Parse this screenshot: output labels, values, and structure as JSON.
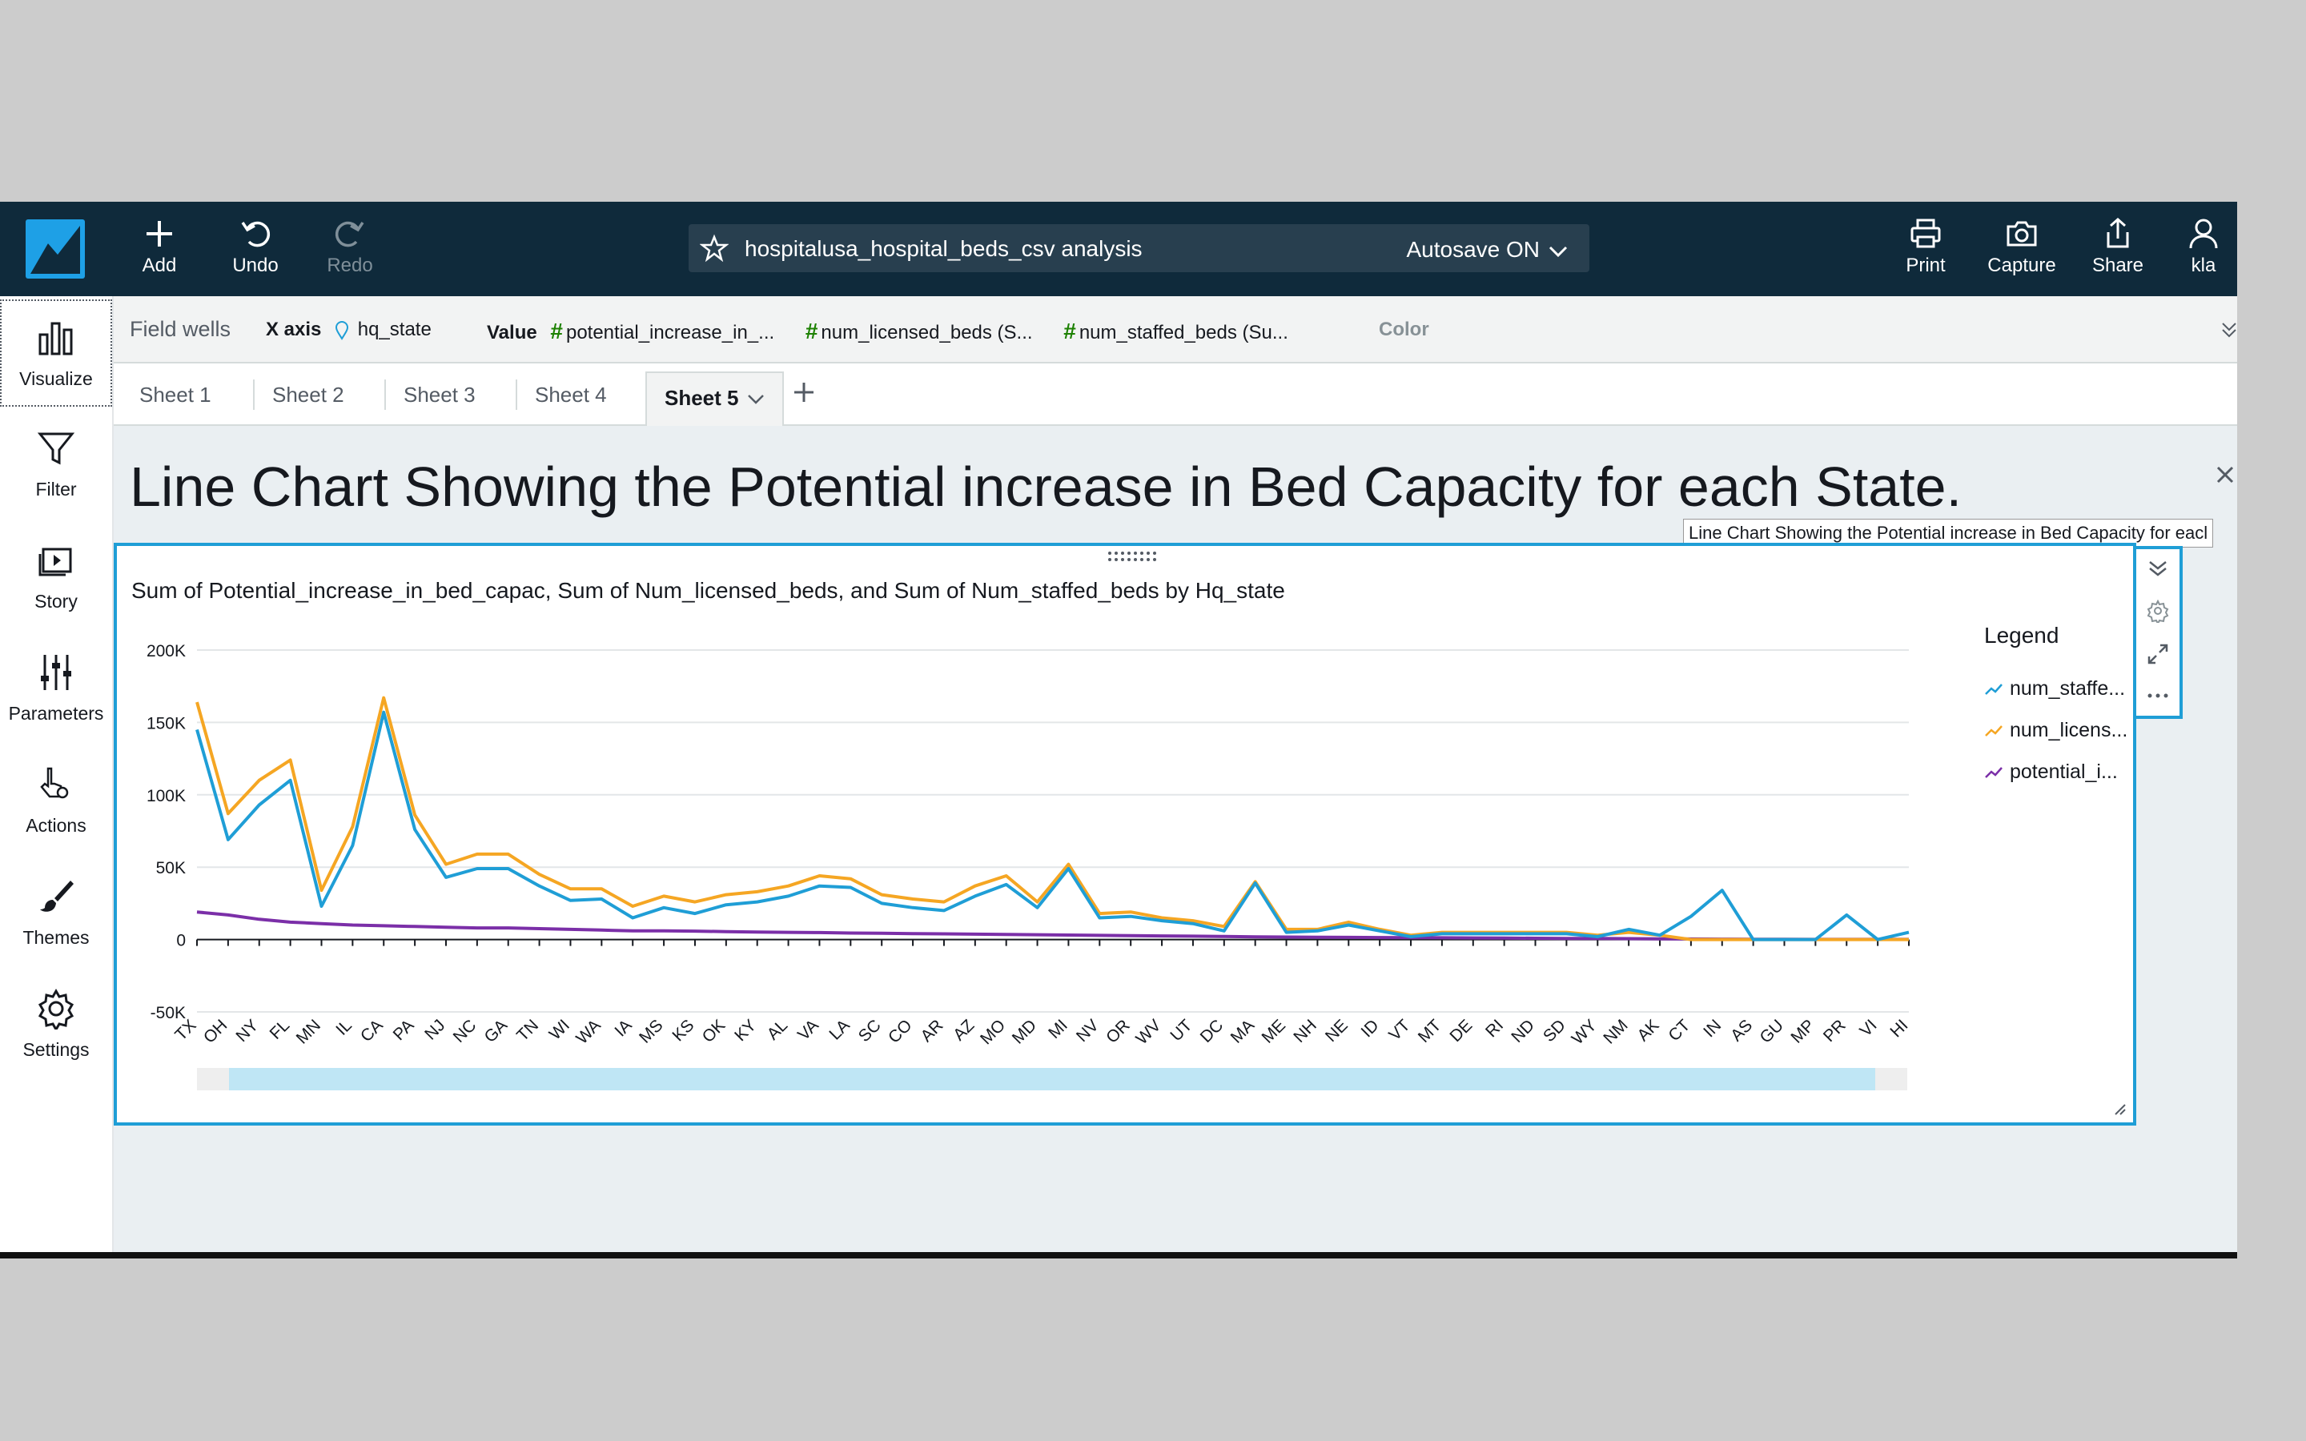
{
  "topbar": {
    "add_label": "Add",
    "undo_label": "Undo",
    "redo_label": "Redo",
    "analysis_name": "hospitalusa_hospital_beds_csv analysis",
    "autosave_label": "Autosave ON",
    "print_label": "Print",
    "capture_label": "Capture",
    "share_label": "Share",
    "user_label": "kla"
  },
  "leftrail": {
    "visualize": "Visualize",
    "filter": "Filter",
    "story": "Story",
    "parameters": "Parameters",
    "actions": "Actions",
    "themes": "Themes",
    "settings": "Settings"
  },
  "fieldwells": {
    "title": "Field wells",
    "xaxis_label": "X axis",
    "xaxis_field": "hq_state",
    "value_label": "Value",
    "value_fields": [
      "potential_increase_in_...",
      "num_licensed_beds (S...",
      "num_staffed_beds (Su..."
    ],
    "color_label": "Color"
  },
  "tabs": [
    "Sheet 1",
    "Sheet 2",
    "Sheet 3",
    "Sheet 4",
    "Sheet 5"
  ],
  "sheet": {
    "title": "Line Chart Showing the Potential increase in Bed Capacity for each State.",
    "tooltip": "Line Chart Showing the Potential increase in Bed Capacity for eacl"
  },
  "visual": {
    "subtitle": "Sum of Potential_increase_in_bed_capac, Sum of Num_licensed_beds, and Sum of Num_staffed_beds by Hq_state",
    "legend_title": "Legend",
    "legend_items": [
      "num_staffe...",
      "num_licens...",
      "potential_i..."
    ]
  },
  "colors": {
    "topbar": "#0f2a3b",
    "staffed": "#1f9ed6",
    "licensed": "#f5a623",
    "potential": "#7b2fa8",
    "selection": "#1f9ed6"
  },
  "chart_data": {
    "type": "line",
    "categories": [
      "TX",
      "OH",
      "NY",
      "FL",
      "MN",
      "IL",
      "CA",
      "PA",
      "NJ",
      "NC",
      "GA",
      "TN",
      "WI",
      "WA",
      "IA",
      "MS",
      "KS",
      "OK",
      "KY",
      "AL",
      "VA",
      "LA",
      "SC",
      "CO",
      "AR",
      "AZ",
      "MO",
      "MD",
      "MI",
      "NV",
      "OR",
      "WV",
      "UT",
      "DC",
      "MA",
      "ME",
      "NH",
      "NE",
      "ID",
      "VT",
      "MT",
      "DE",
      "RI",
      "ND",
      "SD",
      "WY",
      "NM",
      "AK",
      "CT",
      "IN",
      "AS",
      "GU",
      "MP",
      "PR",
      "VI",
      "HI"
    ],
    "series": [
      {
        "name": "num_staffe...",
        "color": "#1f9ed6",
        "values": [
          145000,
          69000,
          93000,
          110000,
          23000,
          65000,
          157000,
          76000,
          43000,
          49000,
          49000,
          37000,
          27000,
          28000,
          15000,
          22000,
          18000,
          24000,
          26000,
          30000,
          37000,
          36000,
          25000,
          22000,
          20000,
          30000,
          38000,
          22000,
          49000,
          15000,
          16000,
          13000,
          11000,
          6000,
          39000,
          5000,
          6000,
          10000,
          6000,
          2000,
          4000,
          4000,
          4000,
          4000,
          4000,
          2000,
          7000,
          3000,
          16000,
          34000,
          0,
          0,
          0,
          17000,
          0,
          5000
        ]
      },
      {
        "name": "num_licens...",
        "color": "#f5a623",
        "values": [
          164000,
          87000,
          110000,
          124000,
          34000,
          78000,
          167000,
          86000,
          52000,
          59000,
          59000,
          45000,
          35000,
          35000,
          23000,
          30000,
          26000,
          31000,
          33000,
          37000,
          44000,
          42000,
          31000,
          28000,
          26000,
          37000,
          44000,
          26000,
          52000,
          18000,
          19000,
          15000,
          13000,
          9000,
          40000,
          7000,
          7000,
          12000,
          7000,
          3000,
          5000,
          5000,
          5000,
          5000,
          5000,
          3000,
          5000,
          3000,
          0,
          0,
          0,
          0,
          0,
          0,
          0,
          0
        ]
      },
      {
        "name": "potential_i...",
        "color": "#7b2fa8",
        "values": [
          19000,
          17000,
          14000,
          12000,
          11000,
          10000,
          9500,
          9000,
          8500,
          8000,
          8000,
          7500,
          7000,
          6500,
          6000,
          6000,
          5800,
          5500,
          5200,
          5000,
          4800,
          4500,
          4300,
          4100,
          3900,
          3700,
          3500,
          3300,
          3100,
          2900,
          2700,
          2500,
          2300,
          2100,
          1900,
          1700,
          1600,
          1500,
          1400,
          1300,
          1200,
          1100,
          1000,
          900,
          800,
          700,
          600,
          500,
          400,
          300,
          200,
          150,
          100,
          100,
          100,
          100
        ]
      }
    ],
    "yticks": [
      "200K",
      "150K",
      "100K",
      "50K",
      "0",
      "-50K"
    ],
    "ylim": [
      -50000,
      200000
    ],
    "grid": true,
    "legend_position": "right"
  }
}
